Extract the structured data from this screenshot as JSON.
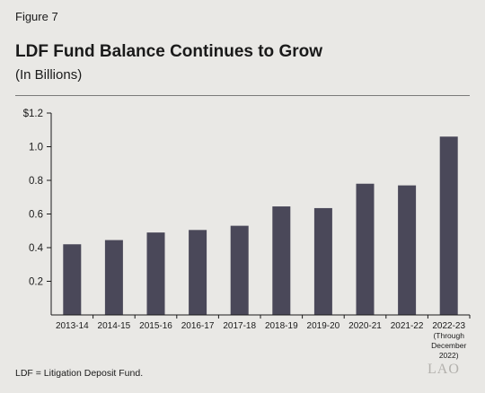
{
  "figure_label": "Figure 7",
  "title": "LDF Fund Balance Continues to Grow",
  "subtitle": "(In Billions)",
  "footnote": "LDF = Litigation Deposit Fund.",
  "logo": "LAO",
  "colors": {
    "bar": "#4a4859",
    "background": "#e9e8e5",
    "axis": "#1a1a1a"
  },
  "chart_data": {
    "type": "bar",
    "title": "LDF Fund Balance Continues to Grow",
    "subtitle": "(In Billions)",
    "xlabel": "",
    "ylabel": "",
    "ylim": [
      0,
      1.2
    ],
    "yticks": [
      0.2,
      0.4,
      0.6,
      0.8,
      1.0,
      1.2
    ],
    "ytick_labels": [
      "0.2",
      "0.4",
      "0.6",
      "0.8",
      "1.0",
      "$1.2"
    ],
    "grid": false,
    "categories": [
      "2013-14",
      "2014-15",
      "2015-16",
      "2016-17",
      "2017-18",
      "2018-19",
      "2019-20",
      "2020-21",
      "2021-22",
      "2022-23\n(Through\nDecember\n2022)"
    ],
    "values": [
      0.42,
      0.445,
      0.49,
      0.505,
      0.53,
      0.645,
      0.635,
      0.78,
      0.77,
      1.06
    ]
  }
}
